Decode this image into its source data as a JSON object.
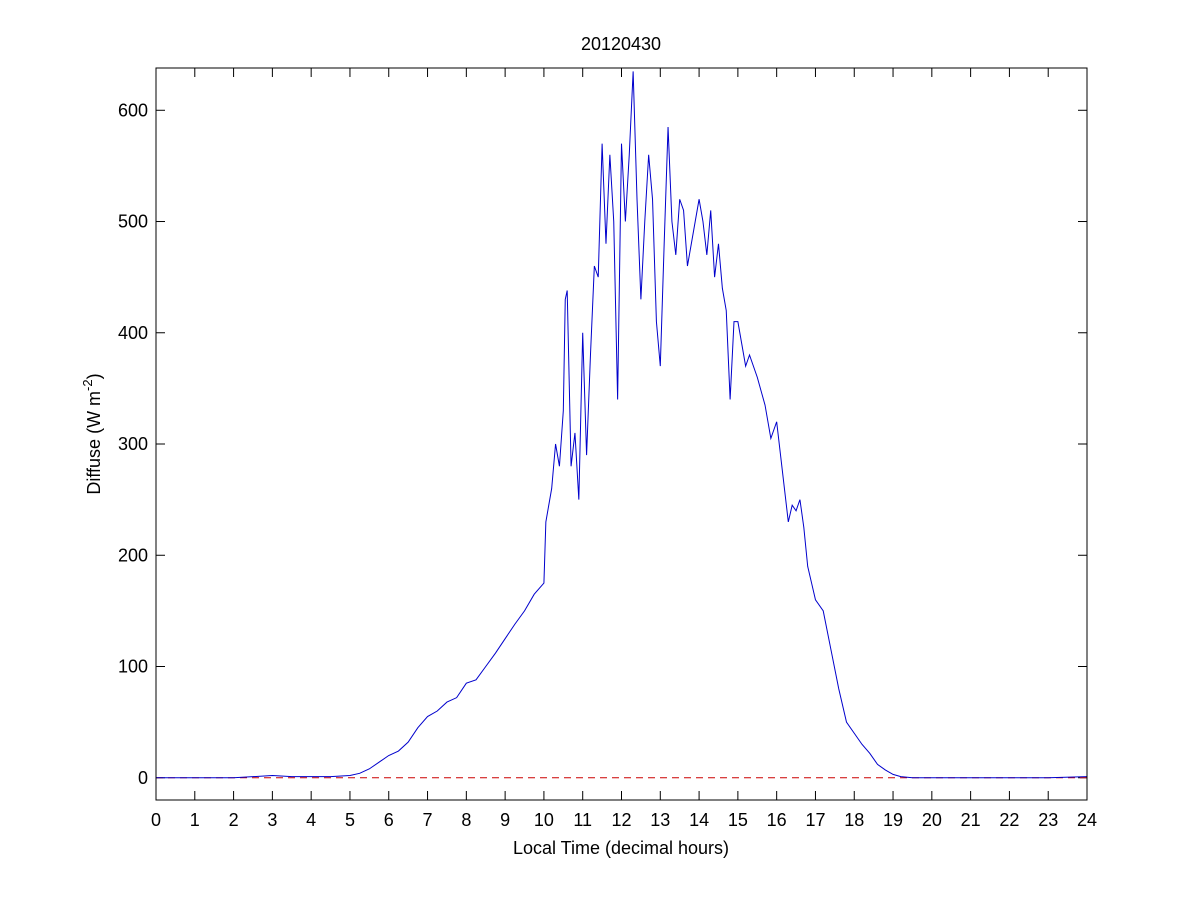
{
  "chart_data": {
    "type": "line",
    "title": "20120430",
    "x_label": "Local Time (decimal hours)",
    "y_label": [
      "Diffuse (W m",
      "-2",
      ")"
    ],
    "x": [
      0,
      1,
      2,
      2.5,
      3,
      3.5,
      4,
      4.5,
      5,
      5.25,
      5.5,
      5.75,
      6,
      6.25,
      6.5,
      6.75,
      7,
      7.25,
      7.5,
      7.75,
      8,
      8.25,
      8.5,
      8.75,
      9,
      9.25,
      9.5,
      9.75,
      10,
      10.05,
      10.2,
      10.3,
      10.4,
      10.5,
      10.55,
      10.6,
      10.7,
      10.8,
      10.9,
      11,
      11.1,
      11.2,
      11.3,
      11.4,
      11.5,
      11.6,
      11.7,
      11.8,
      11.9,
      12,
      12.1,
      12.2,
      12.3,
      12.4,
      12.5,
      12.6,
      12.7,
      12.8,
      12.9,
      13,
      13.1,
      13.2,
      13.3,
      13.4,
      13.5,
      13.6,
      13.7,
      13.8,
      13.9,
      14,
      14.1,
      14.2,
      14.3,
      14.4,
      14.5,
      14.6,
      14.7,
      14.8,
      14.9,
      15,
      15.1,
      15.2,
      15.3,
      15.5,
      15.7,
      15.85,
      16,
      16.1,
      16.2,
      16.3,
      16.4,
      16.5,
      16.6,
      16.7,
      16.8,
      16.9,
      17,
      17.2,
      17.4,
      17.6,
      17.8,
      18,
      18.2,
      18.4,
      18.6,
      18.8,
      19,
      19.2,
      19.5,
      20,
      21,
      22,
      23,
      24
    ],
    "series": [
      {
        "color": "#0000cc",
        "values": [
          0,
          0,
          0,
          1,
          2,
          1,
          1,
          1,
          2,
          4,
          8,
          14,
          20,
          24,
          32,
          45,
          55,
          60,
          68,
          72,
          85,
          88,
          100,
          112,
          125,
          138,
          150,
          165,
          175,
          230,
          260,
          300,
          280,
          330,
          430,
          438,
          280,
          310,
          250,
          400,
          290,
          380,
          460,
          450,
          570,
          480,
          560,
          500,
          340,
          570,
          500,
          560,
          635,
          520,
          430,
          500,
          560,
          520,
          410,
          370,
          480,
          585,
          500,
          470,
          520,
          510,
          460,
          480,
          500,
          520,
          500,
          470,
          510,
          450,
          480,
          440,
          420,
          340,
          410,
          410,
          390,
          370,
          380,
          360,
          335,
          305,
          320,
          290,
          260,
          230,
          245,
          240,
          250,
          225,
          190,
          175,
          160,
          150,
          115,
          80,
          50,
          40,
          30,
          22,
          12,
          7,
          3,
          1,
          0,
          0,
          0,
          0,
          0,
          1
        ]
      }
    ],
    "reference_line": {
      "y": 0,
      "color": "#cc0000",
      "style": "dashed"
    },
    "xlim": [
      0,
      24
    ],
    "xticks": [
      0,
      1,
      2,
      3,
      4,
      5,
      6,
      7,
      8,
      9,
      10,
      11,
      12,
      13,
      14,
      15,
      16,
      17,
      18,
      19,
      20,
      21,
      22,
      23,
      24
    ],
    "ylim": [
      -20,
      638
    ],
    "yticks": [
      0,
      100,
      200,
      300,
      400,
      500,
      600
    ]
  }
}
